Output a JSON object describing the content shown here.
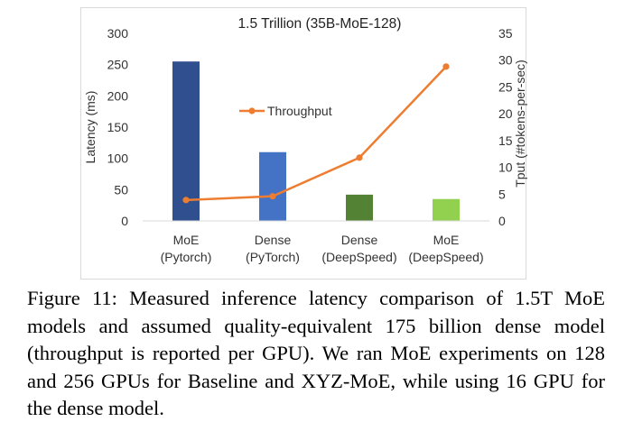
{
  "chart_data": {
    "type": "bar",
    "title": "1.5 Trillion (35B-MoE-128)",
    "categories": [
      [
        "MoE",
        "(Pytorch)"
      ],
      [
        "Dense",
        "(PyTorch)"
      ],
      [
        "Dense",
        "(DeepSpeed)"
      ],
      [
        "MoE",
        "(DeepSpeed)"
      ]
    ],
    "series": [
      {
        "name": "",
        "kind": "bar",
        "axis": "left",
        "values": [
          255,
          110,
          42,
          35
        ],
        "colors": [
          "#2f4f8f",
          "#4472c4",
          "#548235",
          "#92d050"
        ]
      },
      {
        "name": "Throughput",
        "kind": "line",
        "axis": "right",
        "values": [
          3.9,
          4.6,
          11.8,
          28.8
        ],
        "color": "#ed7d31"
      }
    ],
    "ylabel": "Latency (ms)",
    "ylim": [
      0,
      300
    ],
    "yticks": [
      0,
      50,
      100,
      150,
      200,
      250,
      300
    ],
    "y2label": "Tput (#tokens-per-sec)",
    "y2lim": [
      0,
      35
    ],
    "y2ticks": [
      0,
      5,
      10,
      15,
      20,
      25,
      30,
      35
    ],
    "grid": false,
    "legend_position": "center"
  },
  "caption": "Figure 11: Measured inference latency comparison of 1.5T MoE models and assumed quality-equivalent 175 billion dense model (throughput is reported per GPU). We ran MoE experiments on 128 and 256 GPUs for Baseline and XYZ-MoE, while using 16 GPU for the dense model."
}
